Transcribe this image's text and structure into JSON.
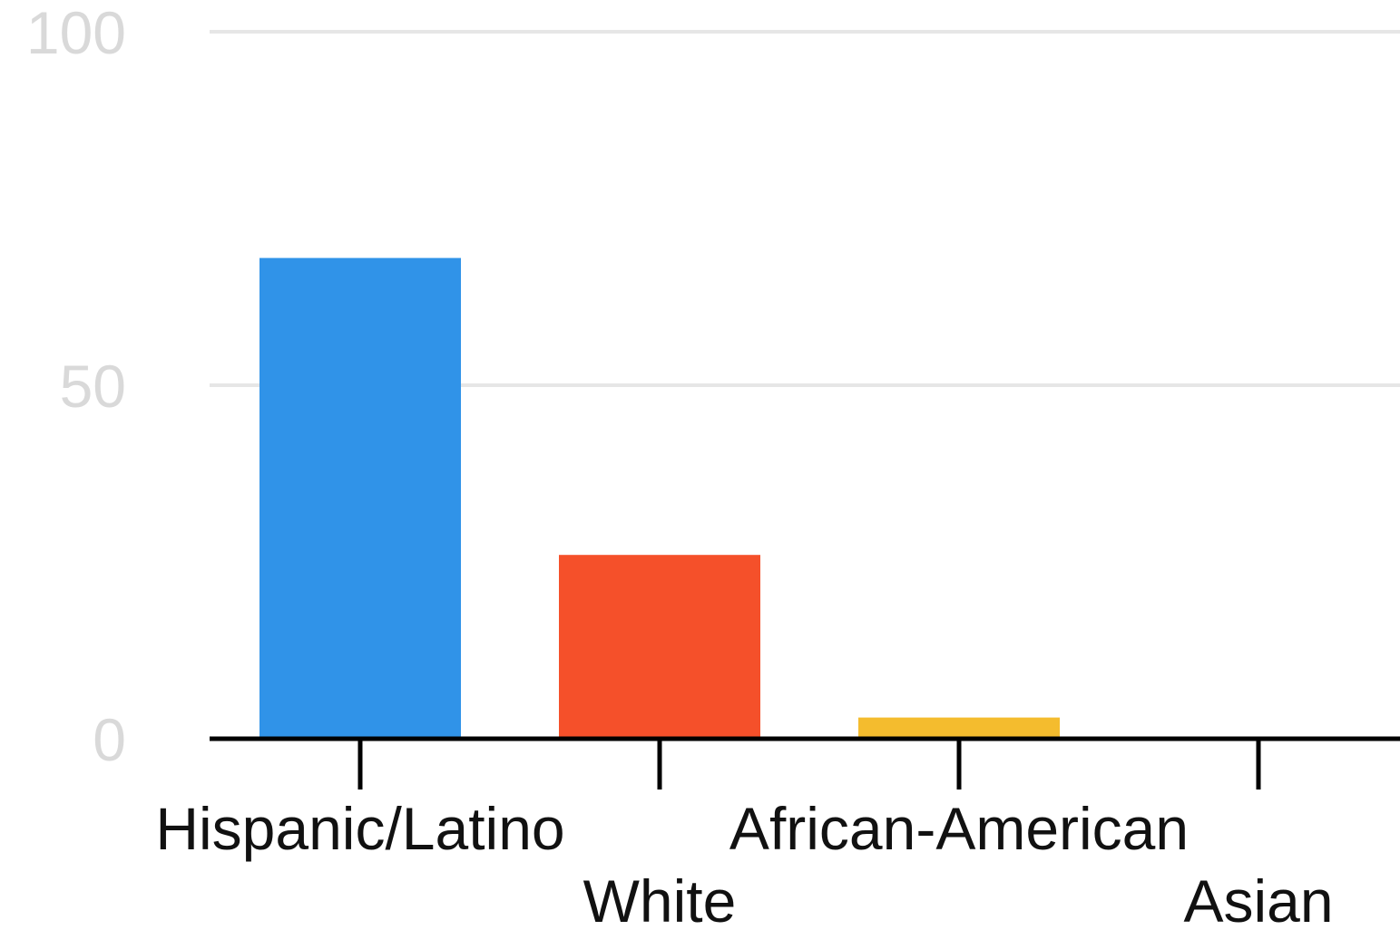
{
  "chart_data": {
    "type": "bar",
    "categories": [
      "Hispanic/Latino",
      "White",
      "African-American",
      "Asian"
    ],
    "values": [
      68,
      26,
      3,
      0
    ],
    "colors": [
      "#3093e8",
      "#f5502a",
      "#f4bc2e",
      "#8e44ad"
    ],
    "ylim": [
      0,
      100
    ],
    "yticks": [
      0,
      50,
      100
    ],
    "grid": true,
    "legend": "none",
    "title": "",
    "xlabel": "",
    "ylabel": "",
    "axis_color": "#000000",
    "grid_color": "#e6e6e6",
    "tick_label_color": "#d9d9d9",
    "category_label_color": "#111111"
  }
}
